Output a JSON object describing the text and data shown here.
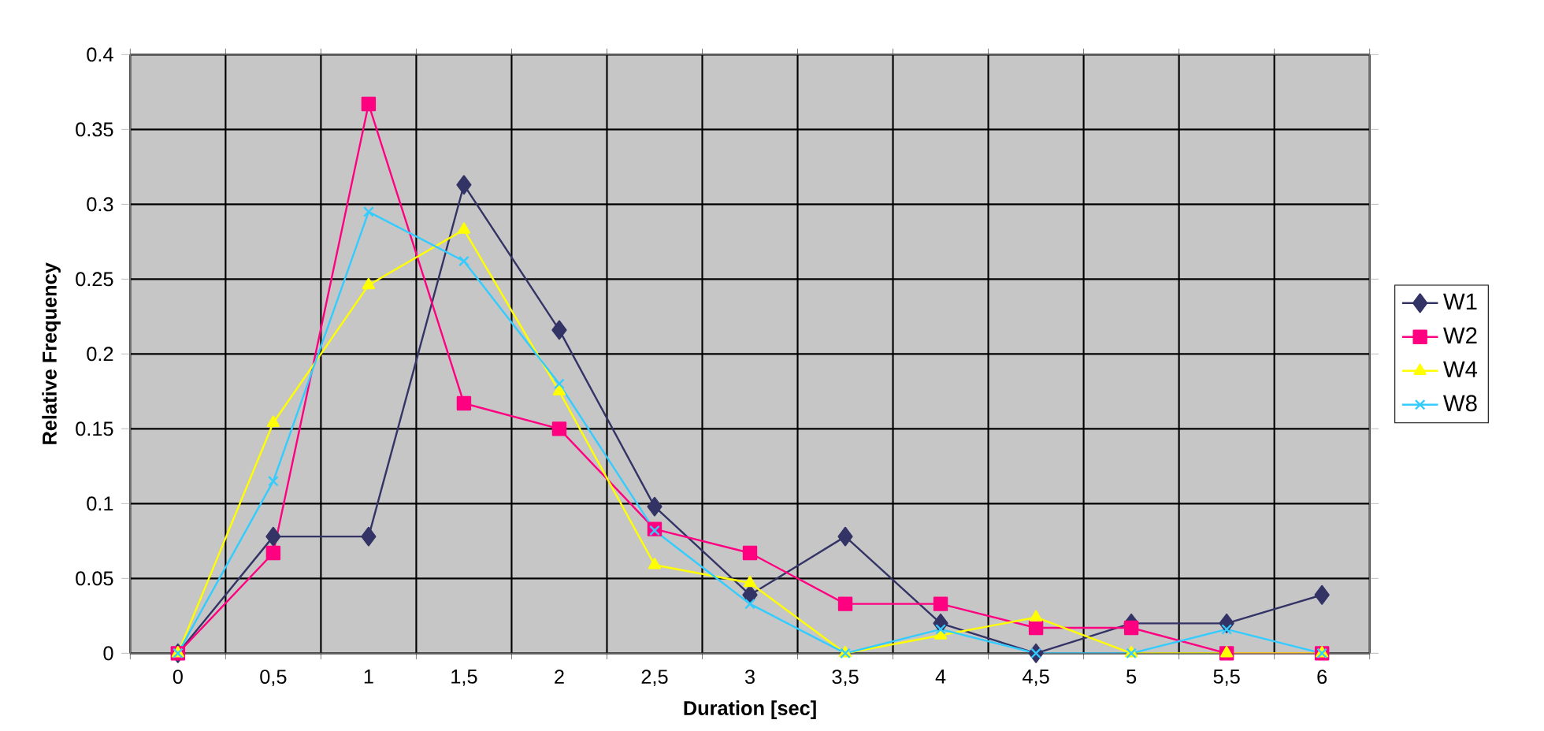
{
  "chart_data": {
    "type": "line",
    "xlabel": "Duration [sec]",
    "ylabel": "Relative Frequency",
    "categories": [
      "0",
      "0,5",
      "1",
      "1,5",
      "2",
      "2,5",
      "3",
      "3,5",
      "4",
      "4,5",
      "5",
      "5,5",
      "6"
    ],
    "series": [
      {
        "name": "W1",
        "color": "#333366",
        "marker": "diamond",
        "values": [
          0,
          0.078,
          0.078,
          0.313,
          0.216,
          0.098,
          0.039,
          0.078,
          0.02,
          0,
          0.02,
          0.02,
          0.039
        ]
      },
      {
        "name": "W2",
        "color": "#ff0080",
        "marker": "square",
        "values": [
          0,
          0.067,
          0.367,
          0.167,
          0.15,
          0.083,
          0.067,
          0.033,
          0.033,
          0.017,
          0.017,
          0,
          0
        ]
      },
      {
        "name": "W4",
        "color": "#ffff00",
        "marker": "triangle",
        "values": [
          0,
          0.154,
          0.246,
          0.283,
          0.175,
          0.059,
          0.047,
          0,
          0.012,
          0.024,
          0,
          0,
          0
        ]
      },
      {
        "name": "W8",
        "color": "#33ccff",
        "marker": "cross",
        "values": [
          0,
          0.115,
          0.295,
          0.262,
          0.18,
          0.082,
          0.033,
          0,
          0.016,
          0,
          0,
          0.016,
          0
        ]
      }
    ],
    "ylim": [
      0,
      0.4
    ],
    "yticks": [
      0,
      0.05,
      0.1,
      0.15,
      0.2,
      0.25,
      0.3,
      0.35,
      0.4
    ],
    "grid": true,
    "legend": "right",
    "line_style": "solid"
  }
}
